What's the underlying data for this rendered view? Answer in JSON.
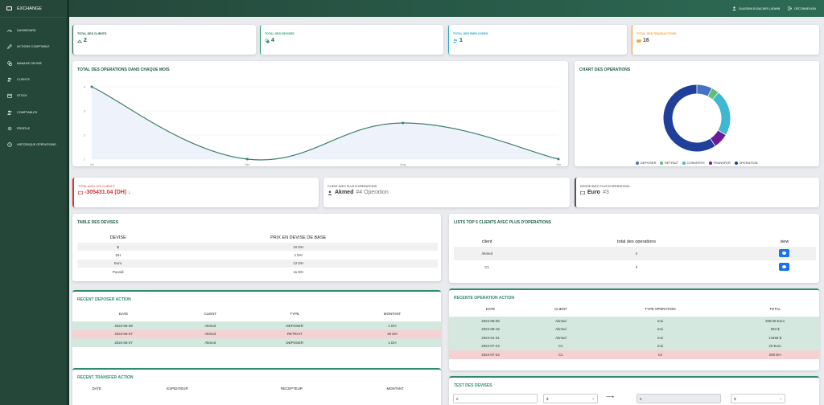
{
  "app": {
    "title": "EXCHANGE"
  },
  "sidebar": {
    "items": [
      {
        "label": "DASHBOARD",
        "icon": "gauge-icon"
      },
      {
        "label": "ACTIONS COMPTABLE",
        "icon": "pencil-icon"
      },
      {
        "label": "MANAGE DEVISE",
        "icon": "coins-icon"
      },
      {
        "label": "CLIENTS",
        "icon": "users-icon"
      },
      {
        "label": "STOCK",
        "icon": "box-icon"
      },
      {
        "label": "COMPTABLES",
        "icon": "user-plus-icon"
      },
      {
        "label": "PROFILE",
        "icon": "gear-icon"
      },
      {
        "label": "HISTORIQUE OPÉRATIONS",
        "icon": "history-icon"
      }
    ]
  },
  "topbar": {
    "user": "OUASSINI ELBACHIRI | ADMIN",
    "logout": "DÉCONNEXION"
  },
  "stats": [
    {
      "label": "TOTAL DES CLIENTS",
      "value": "2",
      "color": "#1e5b45"
    },
    {
      "label": "TOTAL DES DEVISES",
      "value": "4",
      "color": "#2a9d6d"
    },
    {
      "label": "TOTAL DES EMPLOYEES",
      "value": "1",
      "color": "#27a6c4"
    },
    {
      "label": "TOTAL DES TRANSACTIONS",
      "value": "16",
      "color": "#f0a63a"
    }
  ],
  "line_chart": {
    "title": "TOTAL DES OPERATIONS DANS CHAQUE MOIS"
  },
  "chart_data": {
    "type": "line",
    "x": [
      "Jul",
      "Jan",
      "Aug",
      "Jun"
    ],
    "values": [
      4,
      1,
      2.5,
      1
    ],
    "yticks": [
      "1",
      "2",
      "3",
      "4"
    ],
    "ylim": [
      1,
      4
    ],
    "color": "#3c7d6a"
  },
  "doughnut": {
    "title": "CHART DES OPERATIONS",
    "legend": [
      {
        "label": "DEPOSER",
        "color": "#4472c4",
        "value": 2
      },
      {
        "label": "RETRAIT",
        "color": "#5fbf77",
        "value": 1
      },
      {
        "label": "CONVERTE",
        "color": "#3fb7cf",
        "value": 6
      },
      {
        "label": "TRANSFER",
        "color": "#6a1b9a",
        "value": 2
      },
      {
        "label": "OPERATION",
        "color": "#1f3f99",
        "value": 16
      }
    ]
  },
  "info": [
    {
      "label": "TOTAL AVEC LES CLIENTS",
      "value": "-305431.04 (DH)",
      "extra": "↓"
    },
    {
      "label": "CLIENT AVEC PLUS D'OPERATIONS",
      "value": "Akmed",
      "extra": "#4 Operation"
    },
    {
      "label": "DEVISE AVEC PLUS D'OPERATIONS",
      "value": "Euro",
      "extra": "#3"
    }
  ],
  "devises": {
    "title": "TABLE DES DEVISES",
    "headers": [
      "DEVISE",
      "PRIX EN DEVISE DE BASE"
    ],
    "rows": [
      [
        "$",
        "10 DH"
      ],
      [
        "DH",
        "1 DH"
      ],
      [
        "Euro",
        "12 DH"
      ],
      [
        "Poundi",
        "11 DH"
      ]
    ]
  },
  "top5": {
    "title": "LISTS TOP 5 CLIENTS AVEC PLUS D'OPERATIONS",
    "headers": [
      "client",
      "total des operations",
      "view"
    ],
    "rows": [
      [
        "Akmed",
        "4"
      ],
      [
        "C1",
        "3"
      ]
    ]
  },
  "deposer": {
    "title": "RECENT DEPOSER ACTION",
    "headers": [
      "DATE",
      "CLIENT",
      "TYPE",
      "MONTANT"
    ],
    "rows": [
      [
        "2024-06-08",
        "Akmed",
        "DEPOSER",
        "1 DH"
      ],
      [
        "2024-06-07",
        "Akmed",
        "RETRAIT",
        "40 DH"
      ],
      [
        "2024-06-07",
        "Akmed",
        "DEPOSER",
        "1 DH"
      ]
    ]
  },
  "operations": {
    "title": "RECENTE OPERATION ACTION",
    "headers": [
      "DATE",
      "CLIENT",
      "TYPE OPERATION",
      "TOTAL"
    ],
    "rows": [
      [
        "2024-08-06",
        "Akmed",
        "moi",
        "208.08 Euro"
      ],
      [
        "2024-08-15",
        "Akmed",
        "moi",
        "283 $"
      ],
      [
        "2024-01-31",
        "Akmed",
        "moi",
        "13458 $"
      ],
      [
        "2024-07-24",
        "C1",
        "moi",
        "20 Euro"
      ],
      [
        "2024-07-24",
        "C1",
        "toi",
        "200 DH"
      ]
    ]
  },
  "transfer": {
    "title": "RECENT TRANSFER ACTION",
    "headers": [
      "DATE",
      "EXPIDITEUR",
      "RECEPTEUR",
      "MONTANT"
    ]
  },
  "test": {
    "title": "TEST DES DEVISES",
    "amount1": "0",
    "currency1": "$",
    "arrow": "⟶",
    "amount2": "0",
    "currency2": "$"
  }
}
